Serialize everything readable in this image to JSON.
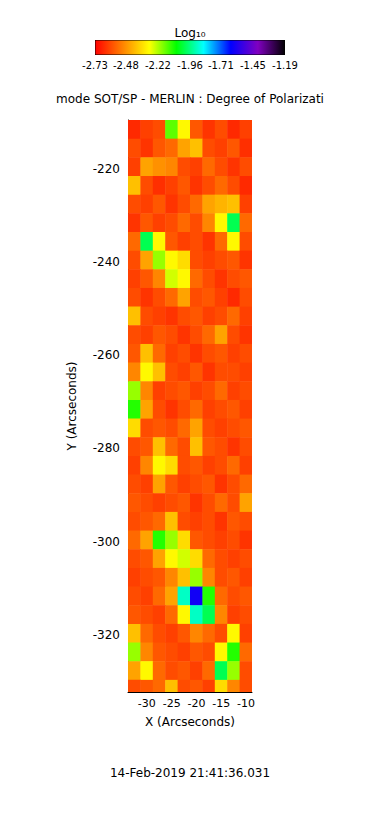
{
  "chart_data": {
    "type": "heatmap",
    "title": "mode SOT/SP - MERLIN : Degree of Polarizati",
    "x_label": "X (Arcseconds)",
    "y_label": "Y (Arcseconds)",
    "annotations": [
      "14-Feb-2019 21:41:36.031"
    ],
    "xlim": [
      -33.8,
      -8.8
    ],
    "xticks": [
      -30,
      -25,
      -20,
      -15,
      -10
    ],
    "ylim": [
      -332.2,
      -209.6
    ],
    "yticks": [
      -220,
      -240,
      -260,
      -280,
      -300,
      -320
    ],
    "x": [
      -32.55,
      -30.05,
      -27.55,
      -25.05,
      -22.55,
      -20.05,
      -17.55,
      -15.05,
      -12.55,
      -10.05
    ],
    "y": [
      -211.6,
      -215.6,
      -219.6,
      -223.6,
      -227.6,
      -231.6,
      -235.6,
      -239.6,
      -243.6,
      -247.6,
      -251.6,
      -255.6,
      -259.6,
      -263.6,
      -267.6,
      -271.6,
      -275.6,
      -279.6,
      -283.6,
      -287.6,
      -291.6,
      -295.6,
      -299.6,
      -303.6,
      -307.6,
      -311.6,
      -315.6,
      -319.6,
      -323.6,
      -327.6,
      -331.6
    ],
    "cells": [
      [
        -2.66,
        -2.62,
        -2.6,
        -2.15,
        -2.3,
        -2.58,
        -2.64,
        -2.6,
        -2.66,
        -2.62
      ],
      [
        -2.6,
        -2.64,
        -2.58,
        -2.55,
        -2.45,
        -2.4,
        -2.6,
        -2.62,
        -2.58,
        -2.65
      ],
      [
        -2.62,
        -2.45,
        -2.48,
        -2.5,
        -2.6,
        -2.62,
        -2.55,
        -2.6,
        -2.64,
        -2.6
      ],
      [
        -2.4,
        -2.6,
        -2.65,
        -2.62,
        -2.58,
        -2.64,
        -2.6,
        -2.55,
        -2.6,
        -2.66
      ],
      [
        -2.6,
        -2.62,
        -2.58,
        -2.64,
        -2.6,
        -2.55,
        -2.45,
        -2.42,
        -2.4,
        -2.62
      ],
      [
        -2.64,
        -2.58,
        -2.62,
        -2.6,
        -2.55,
        -2.6,
        -2.5,
        -2.3,
        -2.0,
        -2.55
      ],
      [
        -2.55,
        -2.0,
        -2.3,
        -2.58,
        -2.62,
        -2.6,
        -2.64,
        -2.55,
        -2.3,
        -2.6
      ],
      [
        -2.6,
        -2.45,
        -2.2,
        -2.3,
        -2.35,
        -2.6,
        -2.62,
        -2.6,
        -2.58,
        -2.64
      ],
      [
        -2.62,
        -2.58,
        -2.5,
        -2.25,
        -2.3,
        -2.55,
        -2.6,
        -2.64,
        -2.6,
        -2.58
      ],
      [
        -2.6,
        -2.64,
        -2.6,
        -2.55,
        -2.45,
        -2.6,
        -2.58,
        -2.62,
        -2.66,
        -2.6
      ],
      [
        -2.4,
        -2.6,
        -2.62,
        -2.64,
        -2.6,
        -2.58,
        -2.62,
        -2.6,
        -2.55,
        -2.62
      ],
      [
        -2.6,
        -2.62,
        -2.58,
        -2.6,
        -2.64,
        -2.6,
        -2.55,
        -2.45,
        -2.6,
        -2.64
      ],
      [
        -2.58,
        -2.4,
        -2.55,
        -2.62,
        -2.6,
        -2.64,
        -2.6,
        -2.58,
        -2.62,
        -2.6
      ],
      [
        -2.5,
        -2.3,
        -2.4,
        -2.6,
        -2.62,
        -2.58,
        -2.64,
        -2.6,
        -2.6,
        -2.62
      ],
      [
        -2.2,
        -2.5,
        -2.62,
        -2.6,
        -2.58,
        -2.62,
        -2.6,
        -2.55,
        -2.62,
        -2.6
      ],
      [
        -2.1,
        -2.45,
        -2.6,
        -2.64,
        -2.6,
        -2.55,
        -2.62,
        -2.6,
        -2.58,
        -2.62
      ],
      [
        -2.35,
        -2.6,
        -2.58,
        -2.6,
        -2.55,
        -2.45,
        -2.6,
        -2.62,
        -2.6,
        -2.58
      ],
      [
        -2.6,
        -2.58,
        -2.4,
        -2.55,
        -2.6,
        -2.4,
        -2.58,
        -2.6,
        -2.64,
        -2.6
      ],
      [
        -2.62,
        -2.5,
        -2.3,
        -2.35,
        -2.6,
        -2.58,
        -2.62,
        -2.6,
        -2.55,
        -2.62
      ],
      [
        -2.6,
        -2.62,
        -2.45,
        -2.58,
        -2.62,
        -2.6,
        -2.58,
        -2.64,
        -2.6,
        -2.55
      ],
      [
        -2.58,
        -2.6,
        -2.62,
        -2.6,
        -2.58,
        -2.64,
        -2.6,
        -2.55,
        -2.6,
        -2.45
      ],
      [
        -2.6,
        -2.58,
        -2.55,
        -2.4,
        -2.6,
        -2.62,
        -2.6,
        -2.64,
        -2.58,
        -2.6
      ],
      [
        -2.55,
        -2.45,
        -2.1,
        -2.2,
        -2.35,
        -2.58,
        -2.6,
        -2.62,
        -2.6,
        -2.64
      ],
      [
        -2.6,
        -2.58,
        -2.45,
        -2.3,
        -2.25,
        -2.35,
        -2.55,
        -2.6,
        -2.62,
        -2.6
      ],
      [
        -2.62,
        -2.6,
        -2.58,
        -2.5,
        -2.4,
        -2.2,
        -2.5,
        -2.6,
        -2.58,
        -2.62
      ],
      [
        -2.6,
        -2.62,
        -2.55,
        -2.45,
        -1.9,
        -1.6,
        -2.1,
        -2.55,
        -2.6,
        -2.58
      ],
      [
        -2.58,
        -2.6,
        -2.62,
        -2.55,
        -2.3,
        -1.9,
        -2.0,
        -2.5,
        -2.62,
        -2.6
      ],
      [
        -2.4,
        -2.55,
        -2.6,
        -2.62,
        -2.58,
        -2.5,
        -2.55,
        -2.6,
        -2.3,
        -2.62
      ],
      [
        -2.2,
        -2.5,
        -2.58,
        -2.6,
        -2.62,
        -2.58,
        -2.6,
        -2.3,
        -2.1,
        -2.55
      ],
      [
        -2.45,
        -2.3,
        -2.55,
        -2.6,
        -2.58,
        -2.62,
        -2.55,
        -2.0,
        -2.2,
        -2.6
      ],
      [
        -2.6,
        -2.58,
        -2.55,
        -2.4,
        -2.6,
        -2.58,
        -2.62,
        -2.35,
        -2.5,
        -2.6
      ]
    ],
    "colorbar": {
      "label": "Log₁₀",
      "range": [
        -2.73,
        -1.19
      ],
      "ticks": [
        -2.73,
        -2.48,
        -2.22,
        -1.96,
        -1.71,
        -1.45,
        -1.19
      ]
    }
  }
}
